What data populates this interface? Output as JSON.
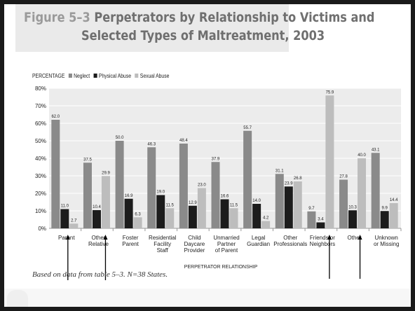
{
  "figure": {
    "label": "Figure 5–3",
    "title_line1": "Perpetrators by Relationship to Victims and",
    "title_line2": "Selected Types of Maltreatment, 2003"
  },
  "legend": {
    "title": "PERCENTAGE",
    "items": [
      {
        "name": "Neglect",
        "color": "#8a8a8a"
      },
      {
        "name": "Physical Abuse",
        "color": "#1c1c1c"
      },
      {
        "name": "Sexual Abuse",
        "color": "#bdbdbd"
      }
    ]
  },
  "note": "Based on data from table 5–3. N=38 States.",
  "chart_data": {
    "type": "bar",
    "title": "Perpetrators by Relationship to Victims and Selected Types of Maltreatment, 2003",
    "xlabel": "PERPETRATOR RELATIONSHIP",
    "ylabel": "PERCENTAGE",
    "ylim": [
      0,
      80
    ],
    "yticks": [
      "0%",
      "10%",
      "20%",
      "30%",
      "40%",
      "50%",
      "60%",
      "70%",
      "80%"
    ],
    "grid": true,
    "legend_position": "top-left",
    "categories": [
      [
        "Parent"
      ],
      [
        "Other",
        "Relative"
      ],
      [
        "Foster",
        "Parent"
      ],
      [
        "Residential",
        "Facility",
        "Staff"
      ],
      [
        "Child",
        "Daycare",
        "Provider"
      ],
      [
        "Unmarried",
        "Partner",
        "of Parent"
      ],
      [
        "Legal",
        "Guardian"
      ],
      [
        "Other",
        "Professionals"
      ],
      [
        "Friends or",
        "Neighbors"
      ],
      [
        "Other"
      ],
      [
        "Unknown",
        "or Missing"
      ]
    ],
    "series": [
      {
        "name": "Neglect",
        "color": "#8a8a8a",
        "values": [
          62.0,
          37.5,
          50.0,
          46.3,
          48.4,
          37.9,
          55.7,
          31.1,
          9.7,
          27.8,
          43.1
        ],
        "labels": [
          "62.0",
          "37.5",
          "50.0",
          "46.3",
          "48.4",
          "37.9",
          "55.7",
          "31.1",
          "9.7",
          "27.8",
          "43.1"
        ]
      },
      {
        "name": "Physical Abuse",
        "color": "#1c1c1c",
        "values": [
          11.0,
          10.4,
          16.9,
          19.0,
          12.9,
          16.6,
          14.0,
          23.9,
          3.4,
          10.3,
          9.9
        ],
        "labels": [
          "11.0",
          "10.4",
          "16.9",
          "19.0",
          "12.9",
          "16.6",
          "14.0",
          "23.9",
          "3.4",
          "10.3",
          "9.9"
        ]
      },
      {
        "name": "Sexual Abuse",
        "color": "#bdbdbd",
        "values": [
          2.7,
          29.9,
          6.3,
          11.5,
          23.0,
          11.5,
          4.2,
          26.8,
          75.9,
          40.0,
          14.4
        ],
        "labels": [
          "2.7",
          "29.9",
          "6.3",
          "11.5",
          "23.0",
          "11.5",
          "4.2",
          "26.8",
          "75.9",
          "40.0",
          "14.4"
        ]
      }
    ],
    "annotations": [
      {
        "type": "arrow",
        "category_index": 0,
        "direction": "up"
      },
      {
        "type": "arrow",
        "category_index": 1,
        "direction": "up"
      },
      {
        "type": "arrow",
        "category_index": 8,
        "direction": "up"
      },
      {
        "type": "arrow",
        "category_index": 9,
        "direction": "up"
      }
    ]
  }
}
